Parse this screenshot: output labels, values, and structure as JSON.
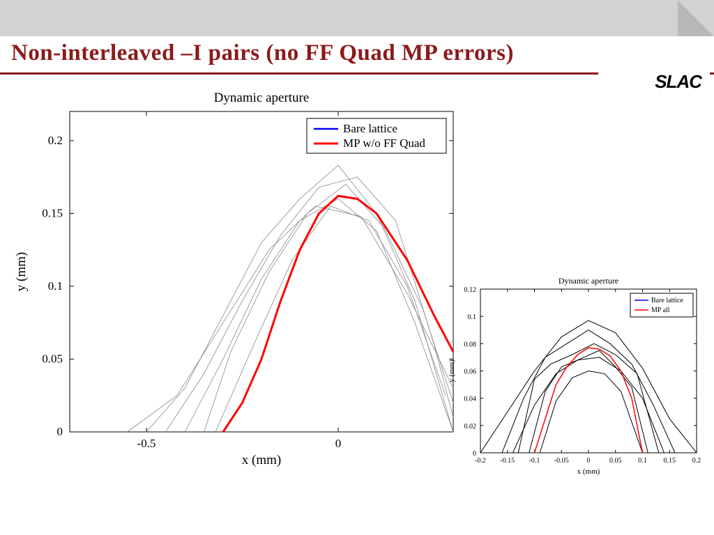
{
  "title": "Non-interleaved –I pairs (no FF Quad MP errors)",
  "logo": "SLAC",
  "chart1": {
    "type": "line",
    "title": "Dynamic aperture",
    "title_fontsize": 19,
    "xlabel": "x (mm)",
    "ylabel": "y (mm)",
    "label_fontsize": 19,
    "tick_fontsize": 17,
    "xlim": [
      -0.7,
      0.3
    ],
    "ylim": [
      0,
      0.22
    ],
    "xticks": [
      -0.5,
      0
    ],
    "yticks": [
      0,
      0.05,
      0.1,
      0.15,
      0.2
    ],
    "legend": [
      "Bare lattice",
      "MP w/o FF Quad"
    ],
    "legend_colors": [
      "#0000ff",
      "#ff0000"
    ],
    "red_series": {
      "x": [
        -0.3,
        -0.25,
        -0.2,
        -0.15,
        -0.1,
        -0.05,
        0.0,
        0.05,
        0.1,
        0.18,
        0.25,
        0.3
      ],
      "y": [
        0.0,
        0.02,
        0.05,
        0.09,
        0.125,
        0.15,
        0.162,
        0.16,
        0.15,
        0.118,
        0.08,
        0.055
      ]
    },
    "gray_series": [
      {
        "x": [
          -0.5,
          -0.4,
          -0.3,
          -0.2,
          -0.1,
          0.0,
          0.1,
          0.2,
          0.3
        ],
        "y": [
          0.0,
          0.03,
          0.08,
          0.13,
          0.16,
          0.183,
          0.15,
          0.09,
          0.0
        ]
      },
      {
        "x": [
          -0.45,
          -0.35,
          -0.25,
          -0.15,
          -0.05,
          0.05,
          0.15,
          0.25,
          0.3
        ],
        "y": [
          0.0,
          0.04,
          0.09,
          0.135,
          0.168,
          0.175,
          0.145,
          0.06,
          0.01
        ]
      },
      {
        "x": [
          -0.35,
          -0.28,
          -0.18,
          -0.08,
          0.02,
          0.12,
          0.22,
          0.3
        ],
        "y": [
          0.0,
          0.055,
          0.11,
          0.15,
          0.17,
          0.14,
          0.085,
          0.02
        ]
      },
      {
        "x": [
          -0.4,
          -0.3,
          -0.2,
          -0.1,
          0.0,
          0.1,
          0.2,
          0.3
        ],
        "y": [
          0.0,
          0.05,
          0.105,
          0.145,
          0.16,
          0.138,
          0.075,
          0.0
        ]
      },
      {
        "x": [
          -0.55,
          -0.42,
          -0.3,
          -0.18,
          -0.06,
          0.06,
          0.18,
          0.3
        ],
        "y": [
          0.0,
          0.025,
          0.075,
          0.125,
          0.155,
          0.148,
          0.095,
          0.03
        ]
      },
      {
        "x": [
          -0.32,
          -0.22,
          -0.12,
          -0.02,
          0.08,
          0.18,
          0.28
        ],
        "y": [
          0.0,
          0.06,
          0.118,
          0.155,
          0.145,
          0.1,
          0.025
        ]
      }
    ]
  },
  "chart2": {
    "type": "line",
    "title": "Dynamic aperture",
    "title_fontsize": 12,
    "xlabel": "x (mm)",
    "ylabel": "y (mm)",
    "label_fontsize": 11,
    "tick_fontsize": 10,
    "xlim": [
      -0.2,
      0.2
    ],
    "ylim": [
      0,
      0.12
    ],
    "xticks": [
      -0.2,
      -0.15,
      -0.1,
      -0.05,
      0,
      0.05,
      0.1,
      0.15,
      0.2
    ],
    "yticks": [
      0,
      0.02,
      0.04,
      0.06,
      0.08,
      0.1,
      0.12
    ],
    "legend": [
      "Bare lattice",
      "MP all"
    ],
    "legend_colors": [
      "#0000ff",
      "#ff0000"
    ],
    "red_series": {
      "x": [
        -0.1,
        -0.08,
        -0.06,
        -0.04,
        -0.02,
        0.0,
        0.02,
        0.04,
        0.06,
        0.08,
        0.1
      ],
      "y": [
        0.0,
        0.025,
        0.05,
        0.063,
        0.072,
        0.077,
        0.076,
        0.071,
        0.06,
        0.04,
        0.0
      ]
    },
    "black_series": [
      {
        "x": [
          -0.2,
          -0.15,
          -0.1,
          -0.05,
          0.0,
          0.05,
          0.1,
          0.15,
          0.2
        ],
        "y": [
          0.0,
          0.03,
          0.06,
          0.085,
          0.097,
          0.088,
          0.062,
          0.025,
          0.0
        ]
      },
      {
        "x": [
          -0.16,
          -0.12,
          -0.08,
          -0.04,
          0.0,
          0.04,
          0.08,
          0.12,
          0.16
        ],
        "y": [
          0.0,
          0.04,
          0.07,
          0.08,
          0.09,
          0.08,
          0.065,
          0.035,
          0.0
        ]
      },
      {
        "x": [
          -0.13,
          -0.1,
          -0.07,
          -0.03,
          0.01,
          0.05,
          0.09,
          0.13
        ],
        "y": [
          0.0,
          0.054,
          0.065,
          0.072,
          0.08,
          0.072,
          0.058,
          0.0
        ]
      },
      {
        "x": [
          -0.11,
          -0.08,
          -0.05,
          -0.02,
          0.02,
          0.05,
          0.08,
          0.11
        ],
        "y": [
          0.0,
          0.045,
          0.063,
          0.068,
          0.075,
          0.063,
          0.048,
          0.0
        ]
      },
      {
        "x": [
          -0.14,
          -0.1,
          -0.06,
          -0.02,
          0.02,
          0.06,
          0.1,
          0.14
        ],
        "y": [
          0.0,
          0.035,
          0.058,
          0.068,
          0.07,
          0.06,
          0.04,
          0.0
        ]
      },
      {
        "x": [
          -0.09,
          -0.06,
          -0.03,
          0.0,
          0.03,
          0.06,
          0.1
        ],
        "y": [
          0.0,
          0.038,
          0.055,
          0.06,
          0.058,
          0.045,
          0.0
        ]
      }
    ]
  }
}
